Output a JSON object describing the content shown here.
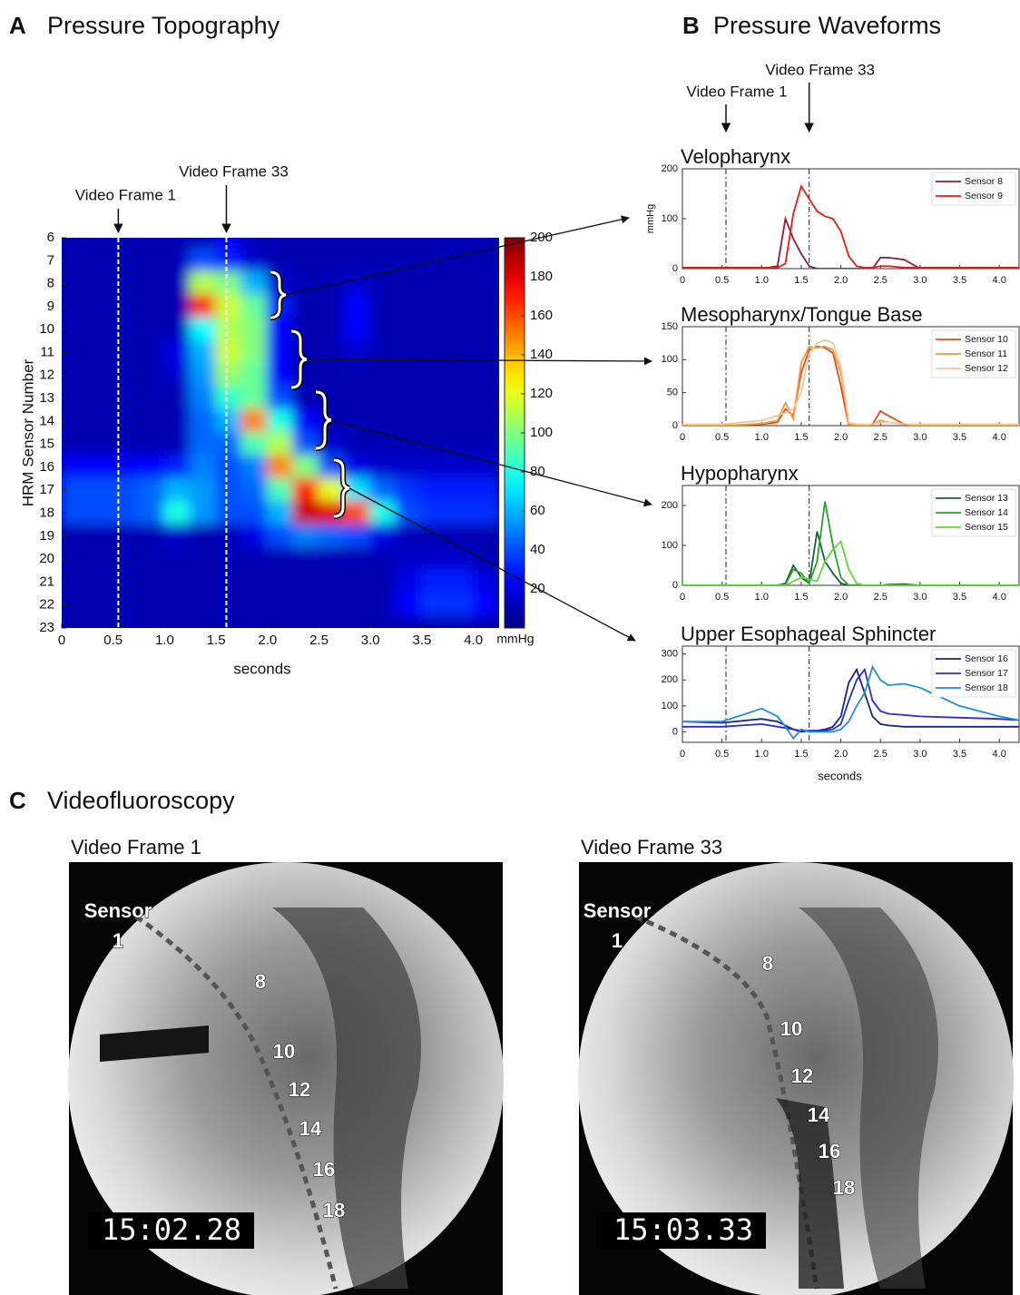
{
  "chart_data": [
    {
      "type": "heatmap",
      "panel": "A",
      "title": "Pressure Topography",
      "xlabel": "seconds",
      "ylabel": "HRM Sensor Number",
      "x": [
        0.125,
        0.375,
        0.625,
        0.875,
        1.125,
        1.375,
        1.625,
        1.875,
        2.125,
        2.375,
        2.625,
        2.875,
        3.125,
        3.375,
        3.625,
        3.875,
        4.125
      ],
      "y": [
        6,
        7,
        8,
        9,
        10,
        11,
        12,
        13,
        14,
        15,
        16,
        17,
        18,
        19,
        20,
        21,
        22,
        23
      ],
      "values": [
        [
          10,
          10,
          10,
          10,
          10,
          10,
          25,
          10,
          10,
          10,
          10,
          10,
          10,
          10,
          10,
          10,
          10
        ],
        [
          10,
          10,
          10,
          10,
          10,
          40,
          30,
          15,
          10,
          10,
          10,
          10,
          10,
          10,
          10,
          10,
          10
        ],
        [
          10,
          10,
          10,
          10,
          10,
          110,
          100,
          60,
          15,
          10,
          10,
          15,
          10,
          10,
          10,
          10,
          10
        ],
        [
          10,
          10,
          10,
          10,
          10,
          170,
          115,
          95,
          30,
          10,
          10,
          25,
          10,
          10,
          10,
          10,
          10
        ],
        [
          10,
          10,
          10,
          10,
          10,
          75,
          110,
          100,
          25,
          10,
          10,
          25,
          10,
          10,
          10,
          10,
          10
        ],
        [
          10,
          10,
          10,
          10,
          20,
          60,
          115,
          100,
          25,
          10,
          10,
          15,
          10,
          10,
          10,
          10,
          10
        ],
        [
          10,
          10,
          10,
          10,
          15,
          55,
          105,
          95,
          25,
          10,
          10,
          10,
          10,
          10,
          10,
          10,
          10
        ],
        [
          10,
          10,
          10,
          10,
          10,
          50,
          85,
          95,
          40,
          10,
          10,
          10,
          10,
          10,
          10,
          10,
          10
        ],
        [
          10,
          10,
          10,
          10,
          10,
          45,
          60,
          150,
          80,
          25,
          10,
          10,
          10,
          10,
          10,
          10,
          10
        ],
        [
          10,
          10,
          10,
          10,
          10,
          45,
          45,
          90,
          110,
          40,
          15,
          10,
          10,
          10,
          10,
          10,
          10
        ],
        [
          25,
          25,
          25,
          25,
          30,
          50,
          40,
          50,
          150,
          100,
          40,
          20,
          15,
          15,
          15,
          15,
          15
        ],
        [
          40,
          40,
          40,
          45,
          60,
          55,
          40,
          45,
          90,
          170,
          120,
          70,
          45,
          35,
          30,
          30,
          30
        ],
        [
          40,
          40,
          40,
          45,
          80,
          55,
          40,
          40,
          60,
          185,
          180,
          160,
          80,
          40,
          35,
          35,
          35
        ],
        [
          10,
          10,
          10,
          10,
          15,
          10,
          10,
          20,
          40,
          50,
          45,
          40,
          20,
          10,
          10,
          10,
          10
        ],
        [
          10,
          10,
          10,
          10,
          10,
          10,
          10,
          10,
          10,
          10,
          10,
          10,
          10,
          15,
          15,
          15,
          10
        ],
        [
          10,
          10,
          10,
          10,
          10,
          10,
          10,
          10,
          10,
          10,
          10,
          10,
          10,
          20,
          30,
          30,
          20
        ],
        [
          10,
          10,
          10,
          10,
          10,
          10,
          10,
          10,
          10,
          10,
          10,
          10,
          10,
          25,
          35,
          35,
          25
        ],
        [
          10,
          10,
          10,
          10,
          10,
          10,
          10,
          10,
          10,
          10,
          10,
          10,
          10,
          10,
          10,
          10,
          10
        ]
      ],
      "xlim": [
        0,
        4.25
      ],
      "xticks": [
        0,
        0.5,
        {
          "value": 1,
          "label": "1.0"
        },
        1.5,
        {
          "value": 2,
          "label": "2.0"
        },
        2.5,
        {
          "value": 3,
          "label": "3.0"
        },
        3.5,
        {
          "value": 4,
          "label": "4.0"
        }
      ],
      "ylim": [
        6,
        23
      ],
      "y_reversed": true,
      "yticks": [
        6,
        7,
        8,
        9,
        10,
        11,
        12,
        13,
        14,
        15,
        16,
        17,
        18,
        19,
        20,
        21,
        22,
        23
      ],
      "colormap": "jet",
      "clim": [
        0,
        200
      ],
      "cticks": [
        20,
        40,
        60,
        80,
        100,
        120,
        140,
        160,
        180,
        200
      ],
      "clabel": "mmHg",
      "markers": [
        {
          "x": 0.55,
          "label": "Video Frame 1"
        },
        {
          "x": 1.6,
          "label": "Video Frame 33"
        }
      ]
    },
    {
      "type": "line",
      "title": "Velopharynx",
      "ylabel": "mmHg",
      "x": [
        0,
        0.5,
        1.0,
        1.2,
        1.3,
        1.4,
        1.5,
        1.6,
        1.7,
        1.8,
        1.9,
        2.0,
        2.1,
        2.2,
        2.3,
        2.4,
        2.5,
        2.6,
        2.8,
        3.0,
        3.5,
        4.0,
        4.25
      ],
      "series": [
        {
          "name": "Sensor 8",
          "color": "#8c1c42",
          "values": [
            0,
            0,
            0,
            5,
            100,
            60,
            30,
            5,
            0,
            0,
            0,
            0,
            0,
            0,
            0,
            0,
            22,
            22,
            18,
            0,
            0,
            0,
            0
          ]
        },
        {
          "name": "Sensor 9",
          "color": "#e41a1c",
          "values": [
            2,
            2,
            2,
            2,
            10,
            110,
            165,
            140,
            115,
            105,
            100,
            75,
            25,
            5,
            2,
            2,
            5,
            5,
            2,
            2,
            2,
            2,
            2
          ]
        }
      ],
      "xlim": [
        0,
        4.25
      ],
      "xticks": [
        0,
        0.5,
        {
          "value": 1,
          "label": "1.0"
        },
        1.5,
        {
          "value": 2,
          "label": "2.0"
        },
        2.5,
        {
          "value": 3,
          "label": "3.0"
        },
        3.5,
        {
          "value": 4,
          "label": "4.0"
        }
      ],
      "ylim": [
        0,
        200
      ],
      "yticks": [
        0,
        100,
        200
      ],
      "legend": "upper right",
      "markers": [
        {
          "x": 0.55,
          "label": "Video Frame 1"
        },
        {
          "x": 1.6,
          "label": "Video Frame 33"
        }
      ]
    },
    {
      "type": "line",
      "title": "Mesopharynx/Tongue Base",
      "x": [
        0,
        0.5,
        1.0,
        1.2,
        1.3,
        1.4,
        1.5,
        1.6,
        1.7,
        1.8,
        1.9,
        2.0,
        2.1,
        2.2,
        2.3,
        2.4,
        2.5,
        2.6,
        2.8,
        3.0,
        3.5,
        4.0,
        4.25
      ],
      "series": [
        {
          "name": "Sensor 10",
          "color": "#d9501e",
          "values": [
            0,
            0,
            2,
            5,
            25,
            15,
            80,
            115,
            120,
            118,
            110,
            60,
            0,
            0,
            0,
            2,
            22,
            15,
            2,
            0,
            0,
            0,
            0
          ]
        },
        {
          "name": "Sensor 11",
          "color": "#f39a3c",
          "values": [
            0,
            0,
            3,
            8,
            35,
            10,
            95,
            120,
            118,
            120,
            115,
            80,
            2,
            0,
            0,
            2,
            8,
            5,
            2,
            0,
            0,
            0,
            0
          ]
        },
        {
          "name": "Sensor 12",
          "color": "#f5c69a",
          "values": [
            2,
            2,
            8,
            15,
            20,
            25,
            50,
            110,
            125,
            130,
            125,
            90,
            5,
            2,
            2,
            2,
            5,
            5,
            2,
            2,
            2,
            2,
            2
          ]
        }
      ],
      "xlim": [
        0,
        4.25
      ],
      "xticks": [
        0,
        0.5,
        {
          "value": 1,
          "label": "1.0"
        },
        1.5,
        {
          "value": 2,
          "label": "2.0"
        },
        2.5,
        {
          "value": 3,
          "label": "3.0"
        },
        3.5,
        {
          "value": 4,
          "label": "4.0"
        }
      ],
      "ylim": [
        0,
        150
      ],
      "yticks": [
        0,
        50,
        100,
        150
      ],
      "legend": "upper right",
      "markers": [
        {
          "x": 0.55
        },
        {
          "x": 1.6
        }
      ]
    },
    {
      "type": "line",
      "title": "Hypopharynx",
      "x": [
        0,
        0.5,
        1.0,
        1.2,
        1.3,
        1.4,
        1.5,
        1.6,
        1.7,
        1.8,
        1.9,
        2.0,
        2.1,
        2.2,
        2.3,
        2.4,
        2.5,
        2.6,
        2.8,
        3.0,
        3.5,
        4.0,
        4.25
      ],
      "series": [
        {
          "name": "Sensor 13",
          "color": "#1e5e3a",
          "values": [
            0,
            0,
            0,
            0,
            5,
            50,
            20,
            5,
            135,
            60,
            30,
            5,
            0,
            0,
            0,
            0,
            0,
            2,
            3,
            0,
            0,
            0,
            0
          ]
        },
        {
          "name": "Sensor 14",
          "color": "#2ca02c",
          "values": [
            0,
            0,
            0,
            0,
            2,
            40,
            30,
            5,
            60,
            210,
            100,
            20,
            0,
            0,
            0,
            0,
            0,
            0,
            0,
            0,
            0,
            0,
            0
          ]
        },
        {
          "name": "Sensor 15",
          "color": "#5fd83e",
          "values": [
            0,
            0,
            0,
            0,
            0,
            10,
            20,
            15,
            10,
            60,
            90,
            110,
            40,
            5,
            0,
            0,
            0,
            0,
            0,
            0,
            0,
            0,
            0
          ]
        }
      ],
      "xlim": [
        0,
        4.25
      ],
      "xticks": [
        0,
        0.5,
        {
          "value": 1,
          "label": "1.0"
        },
        1.5,
        {
          "value": 2,
          "label": "2.0"
        },
        2.5,
        {
          "value": 3,
          "label": "3.0"
        },
        3.5,
        {
          "value": 4,
          "label": "4.0"
        }
      ],
      "ylim": [
        0,
        250
      ],
      "yticks": [
        0,
        100,
        200
      ],
      "legend": "upper right",
      "markers": [
        {
          "x": 0.55
        },
        {
          "x": 1.6
        }
      ]
    },
    {
      "type": "line",
      "title": "Upper Esophageal Sphincter",
      "xlabel": "seconds",
      "x": [
        0,
        0.5,
        1.0,
        1.2,
        1.3,
        1.4,
        1.5,
        1.6,
        1.7,
        1.8,
        1.9,
        2.0,
        2.1,
        2.2,
        2.3,
        2.4,
        2.5,
        2.6,
        2.8,
        3.0,
        3.5,
        4.0,
        4.25
      ],
      "series": [
        {
          "name": "Sensor 16",
          "color": "#1a237e",
          "values": [
            40,
            35,
            50,
            40,
            25,
            10,
            0,
            5,
            5,
            10,
            20,
            60,
            190,
            240,
            150,
            60,
            30,
            25,
            20,
            20,
            20,
            20,
            20
          ]
        },
        {
          "name": "Sensor 17",
          "color": "#2b2bd6",
          "values": [
            20,
            20,
            30,
            20,
            15,
            10,
            5,
            5,
            5,
            5,
            10,
            30,
            120,
            200,
            240,
            120,
            80,
            70,
            65,
            60,
            55,
            50,
            45
          ]
        },
        {
          "name": "Sensor 18",
          "color": "#1f8fd0",
          "values": [
            40,
            40,
            90,
            60,
            20,
            -25,
            10,
            0,
            0,
            0,
            0,
            10,
            40,
            100,
            150,
            250,
            200,
            180,
            185,
            170,
            100,
            60,
            45
          ]
        }
      ],
      "xlim": [
        0,
        4.25
      ],
      "xticks": [
        0,
        0.5,
        {
          "value": 1,
          "label": "1.0"
        },
        1.5,
        {
          "value": 2,
          "label": "2.0"
        },
        2.5,
        {
          "value": 3,
          "label": "3.0"
        },
        3.5,
        {
          "value": 4,
          "label": "4.0"
        }
      ],
      "ylim": [
        -40,
        330
      ],
      "yticks": [
        0,
        100,
        200,
        300
      ],
      "legend": "upper right",
      "markers": [
        {
          "x": 0.55
        },
        {
          "x": 1.6
        }
      ]
    }
  ],
  "panel_b": {
    "panel": "B",
    "title": "Pressure Waveforms"
  },
  "videofluoroscopy": {
    "panel": "C",
    "title": "Videofluoroscopy",
    "frames": [
      {
        "title": "Video Frame 1",
        "sensor_label": "Sensor",
        "sensor_first": "1",
        "sensor_numbers": [
          "8",
          "10",
          "12",
          "14",
          "16",
          "18"
        ],
        "timestamp": "15:02.28"
      },
      {
        "title": "Video Frame 33",
        "sensor_label": "Sensor",
        "sensor_first": "1",
        "sensor_numbers": [
          "8",
          "10",
          "12",
          "14",
          "16",
          "18"
        ],
        "timestamp": "15:03.33"
      }
    ]
  }
}
